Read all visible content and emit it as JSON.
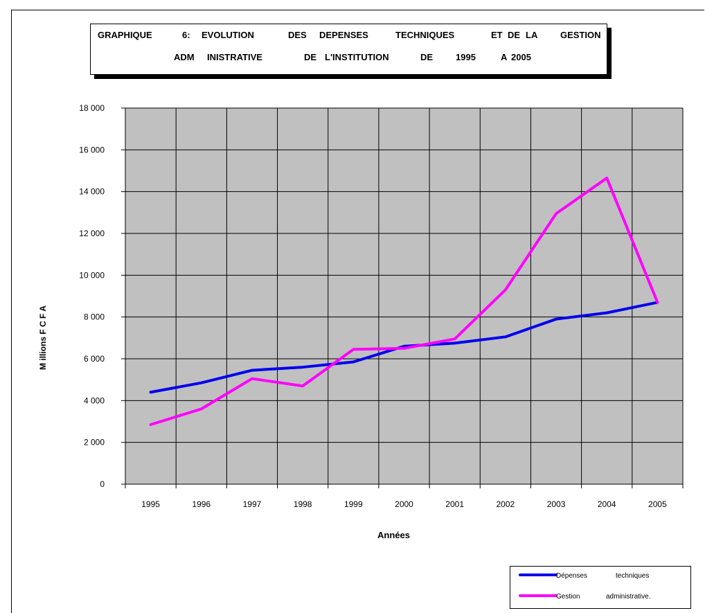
{
  "title": {
    "line1": [
      "GRAPHIQUE",
      "6:",
      "EVOLUTION",
      "DES",
      "DEPENSES",
      "TECHNIQUES",
      "ET",
      "DE",
      "LA",
      "GESTION"
    ],
    "line2": [
      "ADM",
      "INISTRATIVE",
      "DE",
      "L'INSTITUTION",
      "DE",
      "1995",
      "A",
      "2005"
    ]
  },
  "legend": {
    "items": [
      {
        "words": [
          "Dépenses",
          "techniques"
        ],
        "color": "#0000ee"
      },
      {
        "words": [
          "Gestion",
          "administrative."
        ],
        "color": "#ff00ff"
      }
    ]
  },
  "chart_data": {
    "type": "line",
    "xlabel": "Années",
    "ylabel": "M illions F C F A",
    "ylim": [
      0,
      18000
    ],
    "y_ticks": [
      0,
      2000,
      4000,
      6000,
      8000,
      10000,
      12000,
      14000,
      16000,
      18000
    ],
    "y_tick_labels": [
      "0",
      "2 000",
      "4 000",
      "6 000",
      "8 000",
      "10 000",
      "12 000",
      "14 000",
      "16 000",
      "18 000"
    ],
    "categories": [
      "1995",
      "1996",
      "1997",
      "1998",
      "1999",
      "2000",
      "2001",
      "2002",
      "2003",
      "2004",
      "2005"
    ],
    "grid": true,
    "plot_background": "#c0c0c0",
    "series": [
      {
        "name": "Dépenses techniques",
        "color": "#0000ee",
        "values": [
          4400,
          4850,
          5450,
          5600,
          5850,
          6600,
          6750,
          7050,
          7900,
          8200,
          8700
        ]
      },
      {
        "name": "Gestion administrative.",
        "color": "#ff00ff",
        "values": [
          2850,
          3600,
          5050,
          4700,
          6450,
          6500,
          6950,
          9300,
          12950,
          14650,
          8700
        ]
      }
    ]
  }
}
